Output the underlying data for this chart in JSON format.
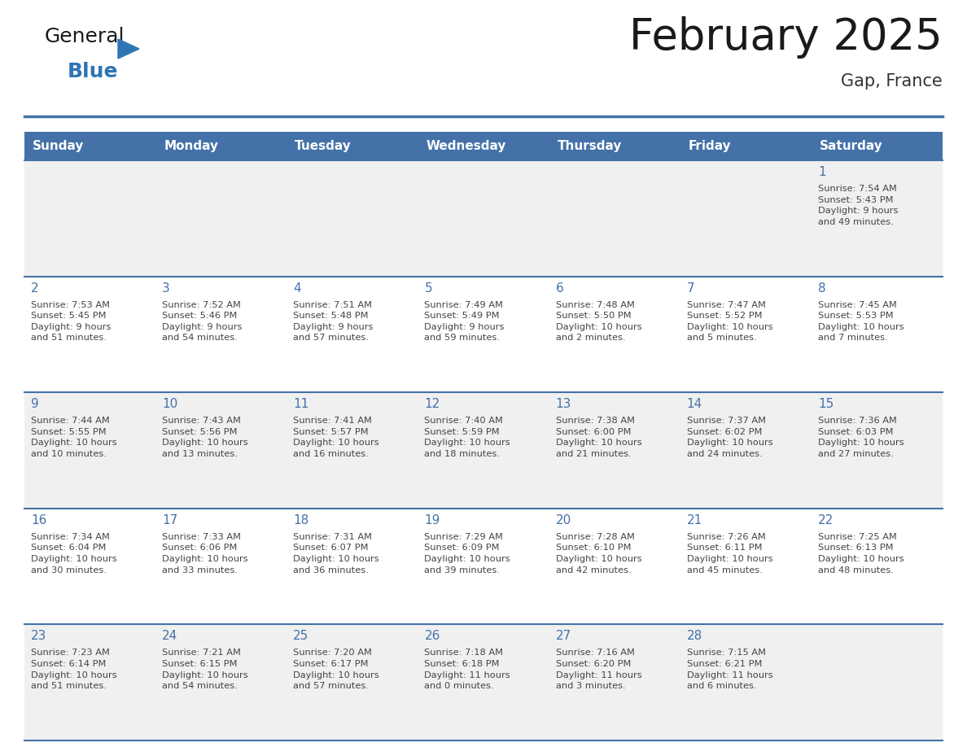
{
  "title": "February 2025",
  "subtitle": "Gap, France",
  "days_of_week": [
    "Sunday",
    "Monday",
    "Tuesday",
    "Wednesday",
    "Thursday",
    "Friday",
    "Saturday"
  ],
  "header_bg": "#4472a8",
  "header_text": "#ffffff",
  "row_bg_odd": "#f0f0f0",
  "row_bg_even": "#ffffff",
  "cell_border_color": "#4472a8",
  "day_num_color": "#4472a8",
  "text_color": "#444444",
  "logo_general_color": "#1a1a1a",
  "logo_blue_color": "#2e75b6",
  "logo_triangle_color": "#2e75b6",
  "calendar_data": [
    [
      null,
      null,
      null,
      null,
      null,
      null,
      {
        "day": 1,
        "sunrise": "7:54 AM",
        "sunset": "5:43 PM",
        "daylight": "9 hours and 49 minutes"
      }
    ],
    [
      {
        "day": 2,
        "sunrise": "7:53 AM",
        "sunset": "5:45 PM",
        "daylight": "9 hours and 51 minutes"
      },
      {
        "day": 3,
        "sunrise": "7:52 AM",
        "sunset": "5:46 PM",
        "daylight": "9 hours and 54 minutes"
      },
      {
        "day": 4,
        "sunrise": "7:51 AM",
        "sunset": "5:48 PM",
        "daylight": "9 hours and 57 minutes"
      },
      {
        "day": 5,
        "sunrise": "7:49 AM",
        "sunset": "5:49 PM",
        "daylight": "9 hours and 59 minutes"
      },
      {
        "day": 6,
        "sunrise": "7:48 AM",
        "sunset": "5:50 PM",
        "daylight": "10 hours and 2 minutes"
      },
      {
        "day": 7,
        "sunrise": "7:47 AM",
        "sunset": "5:52 PM",
        "daylight": "10 hours and 5 minutes"
      },
      {
        "day": 8,
        "sunrise": "7:45 AM",
        "sunset": "5:53 PM",
        "daylight": "10 hours and 7 minutes"
      }
    ],
    [
      {
        "day": 9,
        "sunrise": "7:44 AM",
        "sunset": "5:55 PM",
        "daylight": "10 hours and 10 minutes"
      },
      {
        "day": 10,
        "sunrise": "7:43 AM",
        "sunset": "5:56 PM",
        "daylight": "10 hours and 13 minutes"
      },
      {
        "day": 11,
        "sunrise": "7:41 AM",
        "sunset": "5:57 PM",
        "daylight": "10 hours and 16 minutes"
      },
      {
        "day": 12,
        "sunrise": "7:40 AM",
        "sunset": "5:59 PM",
        "daylight": "10 hours and 18 minutes"
      },
      {
        "day": 13,
        "sunrise": "7:38 AM",
        "sunset": "6:00 PM",
        "daylight": "10 hours and 21 minutes"
      },
      {
        "day": 14,
        "sunrise": "7:37 AM",
        "sunset": "6:02 PM",
        "daylight": "10 hours and 24 minutes"
      },
      {
        "day": 15,
        "sunrise": "7:36 AM",
        "sunset": "6:03 PM",
        "daylight": "10 hours and 27 minutes"
      }
    ],
    [
      {
        "day": 16,
        "sunrise": "7:34 AM",
        "sunset": "6:04 PM",
        "daylight": "10 hours and 30 minutes"
      },
      {
        "day": 17,
        "sunrise": "7:33 AM",
        "sunset": "6:06 PM",
        "daylight": "10 hours and 33 minutes"
      },
      {
        "day": 18,
        "sunrise": "7:31 AM",
        "sunset": "6:07 PM",
        "daylight": "10 hours and 36 minutes"
      },
      {
        "day": 19,
        "sunrise": "7:29 AM",
        "sunset": "6:09 PM",
        "daylight": "10 hours and 39 minutes"
      },
      {
        "day": 20,
        "sunrise": "7:28 AM",
        "sunset": "6:10 PM",
        "daylight": "10 hours and 42 minutes"
      },
      {
        "day": 21,
        "sunrise": "7:26 AM",
        "sunset": "6:11 PM",
        "daylight": "10 hours and 45 minutes"
      },
      {
        "day": 22,
        "sunrise": "7:25 AM",
        "sunset": "6:13 PM",
        "daylight": "10 hours and 48 minutes"
      }
    ],
    [
      {
        "day": 23,
        "sunrise": "7:23 AM",
        "sunset": "6:14 PM",
        "daylight": "10 hours and 51 minutes"
      },
      {
        "day": 24,
        "sunrise": "7:21 AM",
        "sunset": "6:15 PM",
        "daylight": "10 hours and 54 minutes"
      },
      {
        "day": 25,
        "sunrise": "7:20 AM",
        "sunset": "6:17 PM",
        "daylight": "10 hours and 57 minutes"
      },
      {
        "day": 26,
        "sunrise": "7:18 AM",
        "sunset": "6:18 PM",
        "daylight": "11 hours and 0 minutes"
      },
      {
        "day": 27,
        "sunrise": "7:16 AM",
        "sunset": "6:20 PM",
        "daylight": "11 hours and 3 minutes"
      },
      {
        "day": 28,
        "sunrise": "7:15 AM",
        "sunset": "6:21 PM",
        "daylight": "11 hours and 6 minutes"
      },
      null
    ]
  ]
}
